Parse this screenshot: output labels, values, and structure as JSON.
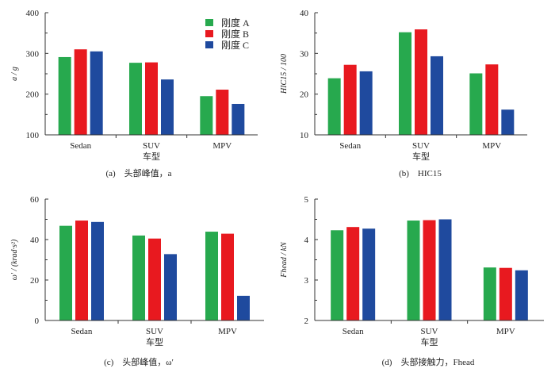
{
  "legend": [
    "刚度 A",
    "刚度 B",
    "刚度 C"
  ],
  "colors": [
    "#27a94e",
    "#e8191f",
    "#1f4a9e"
  ],
  "chart_data": [
    {
      "type": "bar",
      "id": "a",
      "caption": "(a)　头部峰值，a",
      "ylabel": "a / g",
      "xlabel": "车型",
      "categories": [
        "Sedan",
        "SUV",
        "MPV"
      ],
      "ylim": [
        100,
        400
      ],
      "yticks": [
        100,
        200,
        300,
        400
      ],
      "series": [
        {
          "name": "刚度 A",
          "values": [
            291,
            277,
            195
          ]
        },
        {
          "name": "刚度 B",
          "values": [
            310,
            278,
            211
          ]
        },
        {
          "name": "刚度 C",
          "values": [
            305,
            236,
            176
          ]
        }
      ],
      "legend_position": "top-right"
    },
    {
      "type": "bar",
      "id": "b",
      "caption": "(b)　HIC15",
      "ylabel": "HIC15 / 100",
      "xlabel": "车型",
      "categories": [
        "Sedan",
        "SUV",
        "MPV"
      ],
      "ylim": [
        10,
        40
      ],
      "yticks": [
        10,
        20,
        30,
        40
      ],
      "series": [
        {
          "name": "刚度 A",
          "values": [
            23.9,
            35.2,
            25.1
          ]
        },
        {
          "name": "刚度 B",
          "values": [
            27.2,
            35.9,
            27.3
          ]
        },
        {
          "name": "刚度 C",
          "values": [
            25.6,
            29.3,
            16.2
          ]
        }
      ]
    },
    {
      "type": "bar",
      "id": "c",
      "caption": "(c)　头部峰值，ω′",
      "ylabel": "ω′ / (krad·s²)",
      "xlabel": "车型",
      "categories": [
        "Sedan",
        "SUV",
        "MPV"
      ],
      "ylim": [
        0,
        60
      ],
      "yticks": [
        0,
        20,
        40,
        60
      ],
      "series": [
        {
          "name": "刚度 A",
          "values": [
            46.8,
            42.0,
            43.9
          ]
        },
        {
          "name": "刚度 B",
          "values": [
            49.4,
            40.5,
            42.9
          ]
        },
        {
          "name": "刚度 C",
          "values": [
            48.7,
            32.8,
            12.2
          ]
        }
      ]
    },
    {
      "type": "bar",
      "id": "d",
      "caption": "(d)　头部接触力，Fhead",
      "ylabel": "Fhead / kN",
      "xlabel": "车型",
      "categories": [
        "Sedan",
        "SUV",
        "MPV"
      ],
      "ylim": [
        2,
        5
      ],
      "yticks": [
        2,
        3,
        4,
        5
      ],
      "series": [
        {
          "name": "刚度 A",
          "values": [
            4.23,
            4.47,
            3.31
          ]
        },
        {
          "name": "刚度 B",
          "values": [
            4.31,
            4.48,
            3.3
          ]
        },
        {
          "name": "刚度 C",
          "values": [
            4.27,
            4.5,
            3.24
          ]
        }
      ]
    }
  ]
}
